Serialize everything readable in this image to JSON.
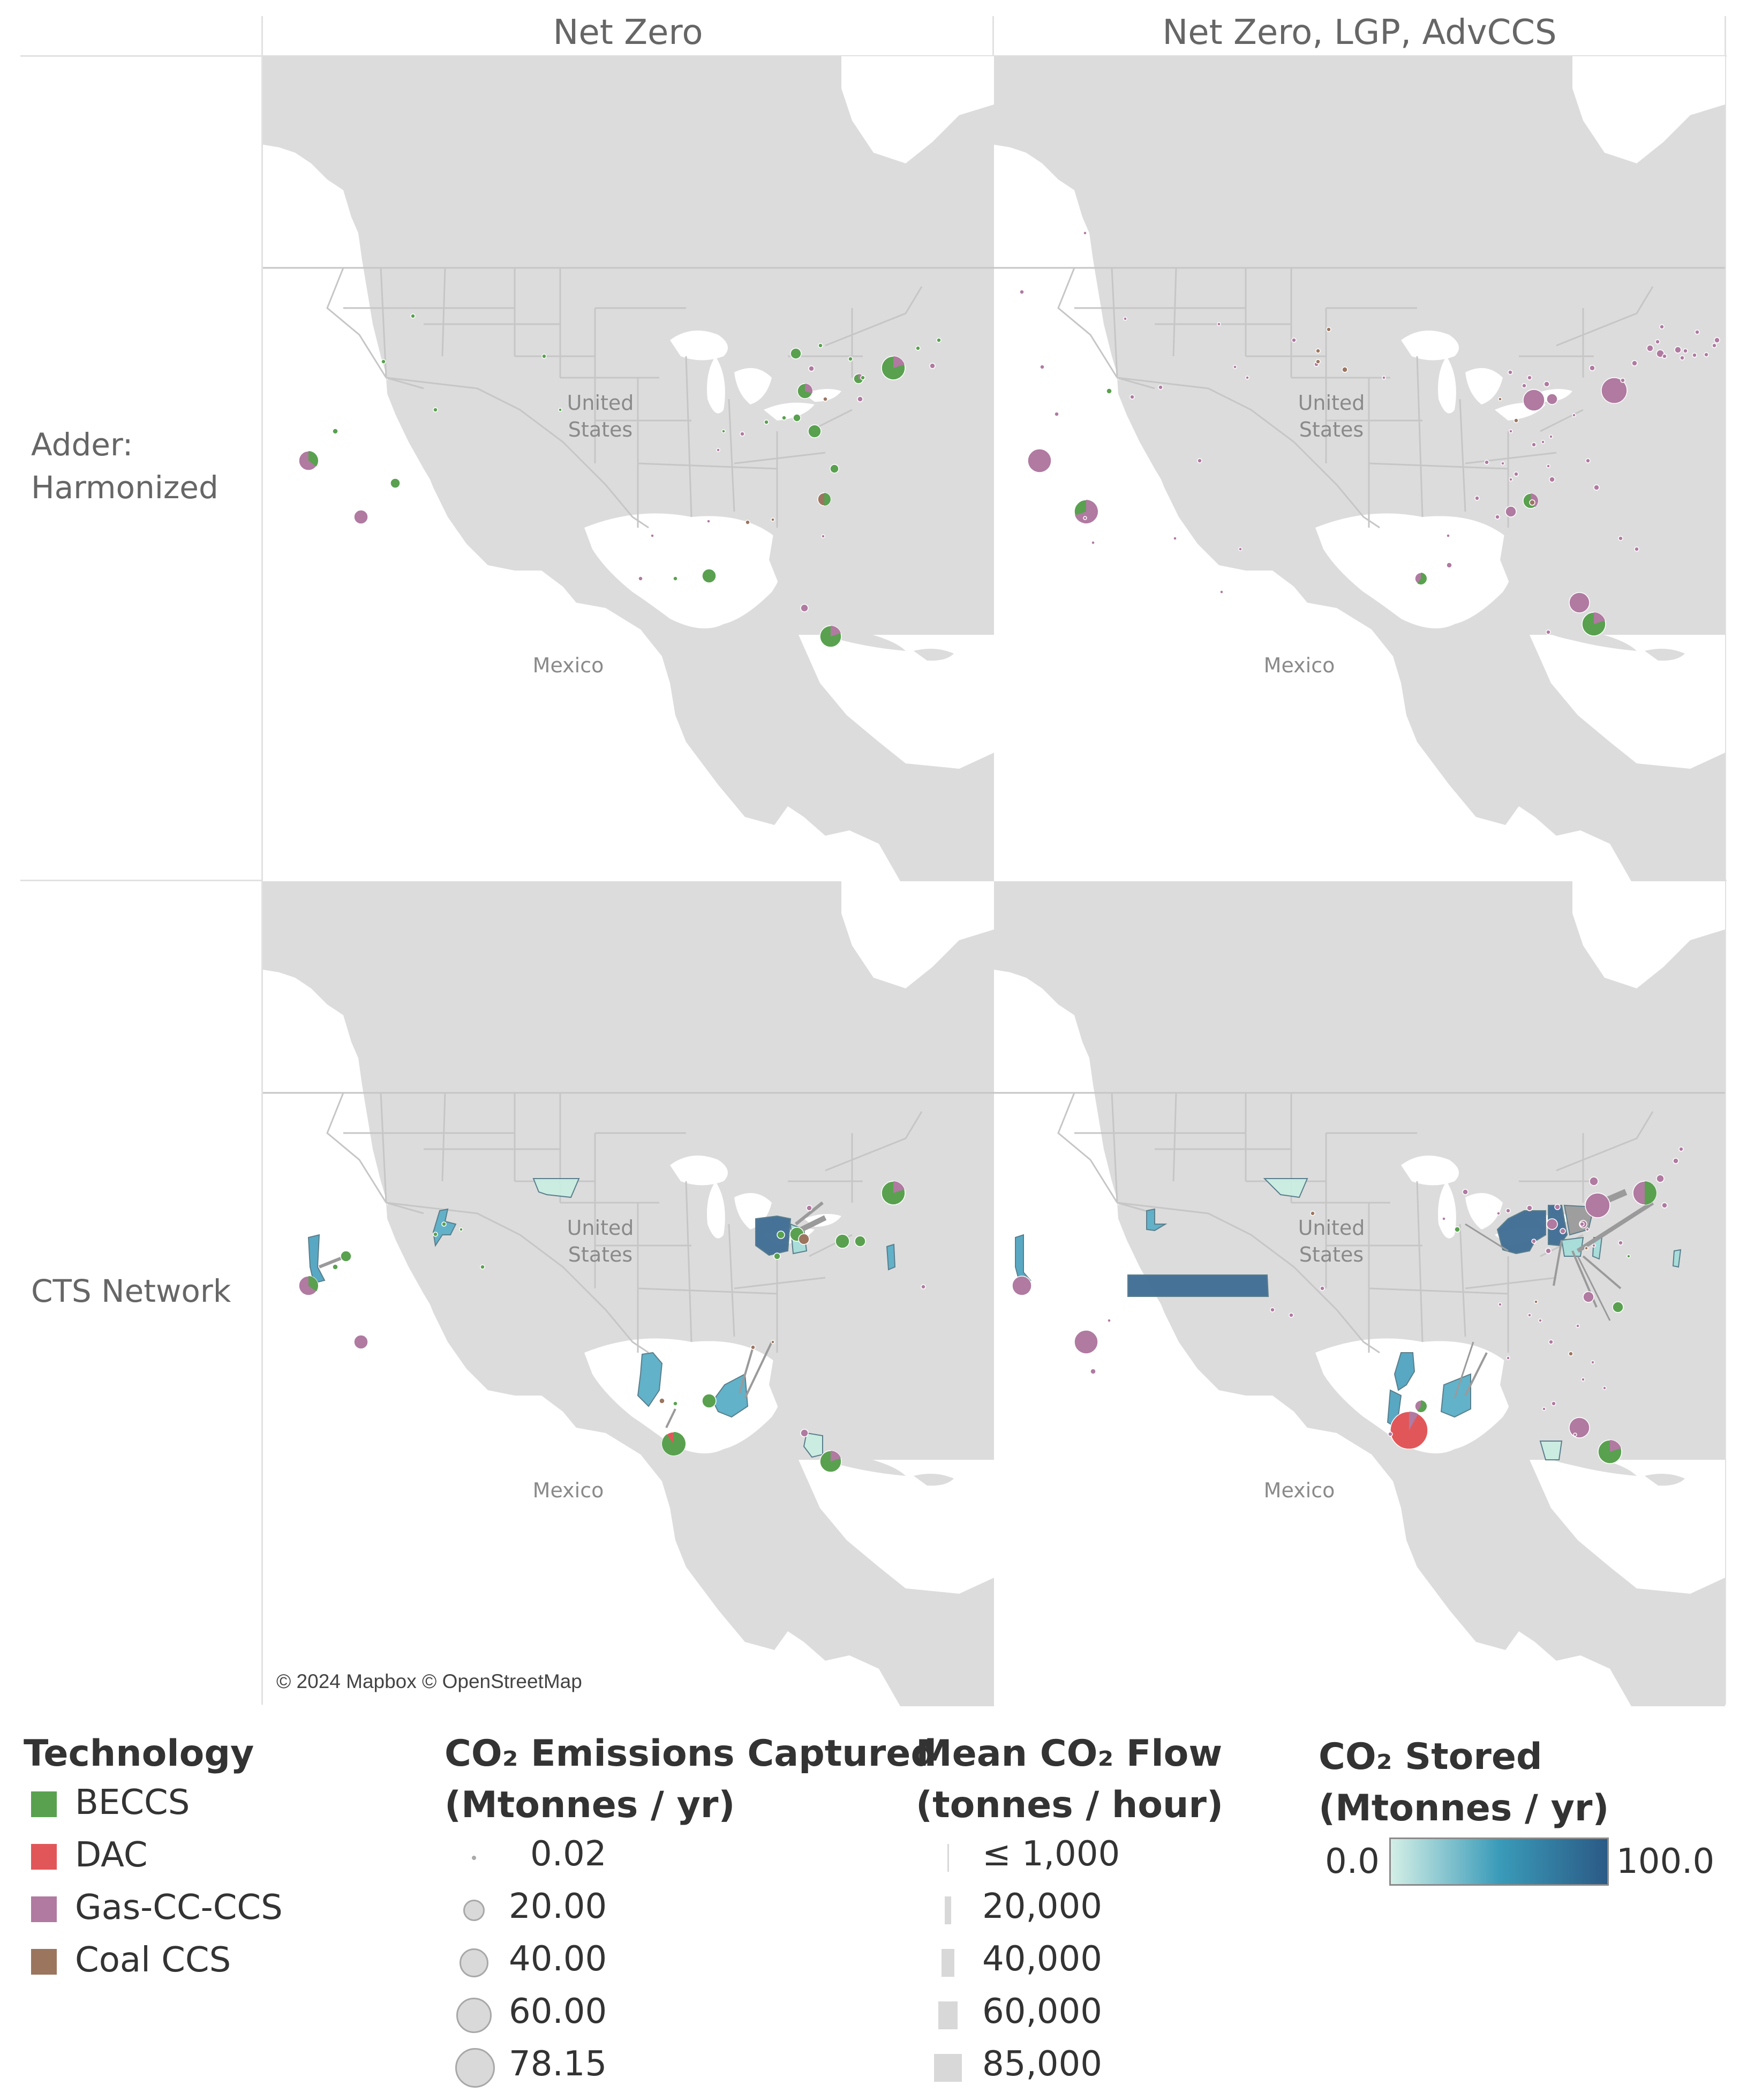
{
  "columns": [
    "Net Zero",
    "Net Zero, LGP, AdvCCS"
  ],
  "rows": [
    {
      "line1": "Adder:",
      "line2": "Harmonized"
    },
    {
      "line1": "CTS Network",
      "line2": ""
    }
  ],
  "map_labels": {
    "us_line1": "United",
    "us_line2": "States",
    "mexico": "Mexico"
  },
  "copyright": "© 2024 Mapbox © OpenStreetMap",
  "legend": {
    "technology": {
      "title": "Technology",
      "items": [
        {
          "label": "BECCS",
          "color": "#59a14f"
        },
        {
          "label": "DAC",
          "color": "#e15759"
        },
        {
          "label": "Gas-CC-CCS",
          "color": "#b07aa1"
        },
        {
          "label": "Coal CCS",
          "color": "#9c755f"
        }
      ]
    },
    "captured": {
      "title_line1": "CO₂ Emissions Captured",
      "title_line2": "(Mtonnes / yr)",
      "items": [
        {
          "label": "0.02",
          "value": 0.02
        },
        {
          "label": "20.00",
          "value": 20
        },
        {
          "label": "40.00",
          "value": 40
        },
        {
          "label": "60.00",
          "value": 60
        },
        {
          "label": "78.15",
          "value": 78.15
        }
      ]
    },
    "flow": {
      "title_line1": "Mean CO₂ Flow",
      "title_line2": "(tonnes / hour)",
      "items": [
        {
          "label": "≤ 1,000",
          "value": 1000
        },
        {
          "label": "20,000",
          "value": 20000
        },
        {
          "label": "40,000",
          "value": 40000
        },
        {
          "label": "60,000",
          "value": 60000
        },
        {
          "label": "85,000",
          "value": 85000
        }
      ]
    },
    "stored": {
      "title_line1": "CO₂ Stored",
      "title_line2": "(Mtonnes / yr)",
      "min_label": "0.0",
      "max_label": "100.0",
      "gradient": [
        "#d4efe6",
        "#3a9bb9",
        "#2b5a86"
      ]
    }
  },
  "map_colors": {
    "land": "#dcdcdc",
    "water": "#ffffff",
    "border": "#c6c6c6"
  }
}
